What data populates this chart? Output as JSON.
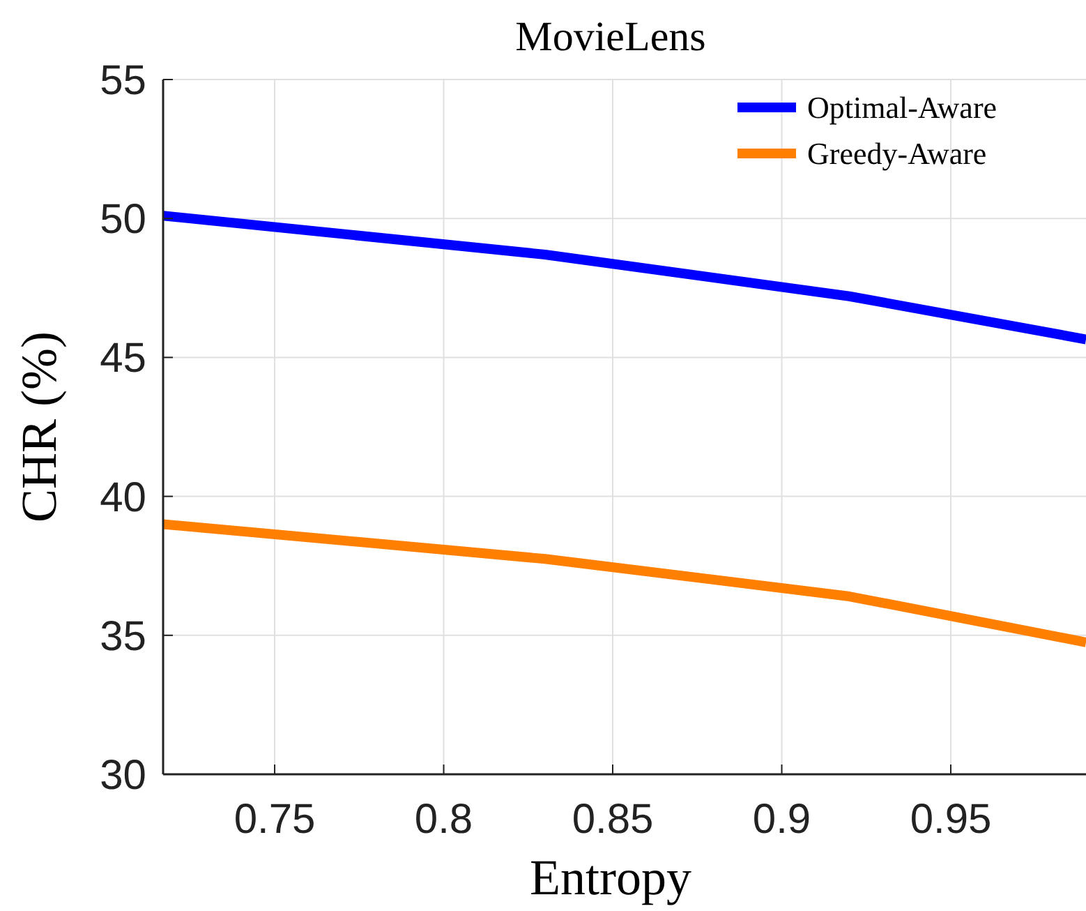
{
  "chart_data": {
    "type": "line",
    "title": "MovieLens",
    "xlabel": "Entropy",
    "ylabel": "CHR (%)",
    "x": [
      0.717,
      0.83,
      0.92,
      0.99
    ],
    "series": [
      {
        "name": "Optimal-Aware",
        "color": "#0000ff",
        "values": [
          50.1,
          48.7,
          47.2,
          45.65
        ]
      },
      {
        "name": "Greedy-Aware",
        "color": "#ff7f00",
        "values": [
          39.0,
          37.75,
          36.4,
          34.75
        ]
      }
    ],
    "xlim": [
      0.717,
      0.99
    ],
    "xticks": [
      0.75,
      0.8,
      0.85,
      0.9,
      0.95
    ],
    "ylim": [
      30,
      55
    ],
    "yticks": [
      30,
      35,
      40,
      45,
      50,
      55
    ],
    "grid": true,
    "legend": "top right",
    "marker": "none",
    "line_style": "solid"
  }
}
